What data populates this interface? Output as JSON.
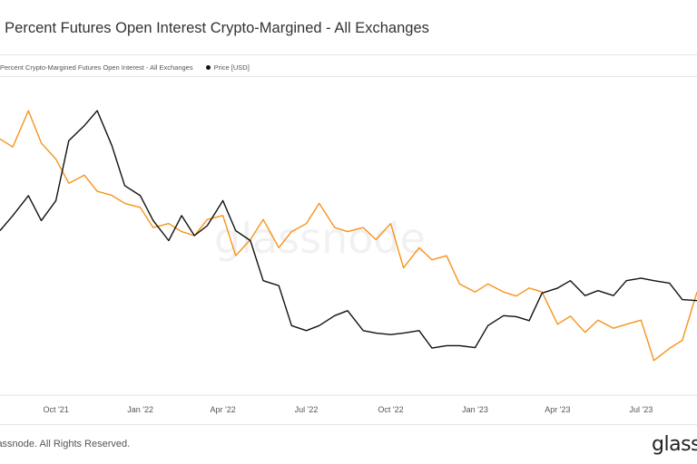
{
  "title": ": Percent Futures Open Interest Crypto-Margined - All Exchanges",
  "legend": [
    {
      "label": "Percent Crypto-Margined Futures Open Interest - All Exchanges",
      "color": "#f7931a"
    },
    {
      "label": "Price [USD]",
      "color": "#111111"
    }
  ],
  "watermark": "glassnode",
  "footer": {
    "copyright": "lassnode. All Rights Reserved.",
    "logo": "glass"
  },
  "colors": {
    "series1": "#f7931a",
    "series2": "#111111"
  },
  "chart_data": {
    "type": "line",
    "x_range": [
      "2021-08-01",
      "2023-08-31"
    ],
    "x_ticks": [
      "Oct '21",
      "Jan '22",
      "Apr '22",
      "Jul '22",
      "Oct '22",
      "Jan '23",
      "Apr '23",
      "Jul '23"
    ],
    "grid": false,
    "legend_position": "top-left",
    "series": [
      {
        "name": "Percent Crypto-Margined Futures Open Interest - All Exchanges",
        "color": "#f7931a",
        "x": [
          "2021-08-01",
          "2021-08-15",
          "2021-09-01",
          "2021-09-15",
          "2021-10-01",
          "2021-10-15",
          "2021-11-01",
          "2021-11-15",
          "2021-12-01",
          "2021-12-15",
          "2022-01-01",
          "2022-01-15",
          "2022-02-01",
          "2022-02-15",
          "2022-03-01",
          "2022-03-15",
          "2022-04-01",
          "2022-04-15",
          "2022-05-01",
          "2022-05-15",
          "2022-06-01",
          "2022-06-15",
          "2022-07-01",
          "2022-07-15",
          "2022-08-01",
          "2022-08-15",
          "2022-09-01",
          "2022-09-15",
          "2022-10-01",
          "2022-10-15",
          "2022-11-01",
          "2022-11-15",
          "2022-12-01",
          "2022-12-15",
          "2023-01-01",
          "2023-01-15",
          "2023-02-01",
          "2023-02-15",
          "2023-03-01",
          "2023-03-15",
          "2023-04-01",
          "2023-04-15",
          "2023-05-01",
          "2023-05-15",
          "2023-06-01",
          "2023-06-15",
          "2023-07-01",
          "2023-07-15",
          "2023-08-01",
          "2023-08-15",
          "2023-08-31"
        ],
        "y": [
          0.8,
          0.78,
          0.87,
          0.79,
          0.75,
          0.69,
          0.71,
          0.67,
          0.66,
          0.64,
          0.63,
          0.58,
          0.59,
          0.57,
          0.56,
          0.6,
          0.61,
          0.51,
          0.55,
          0.6,
          0.53,
          0.57,
          0.59,
          0.64,
          0.58,
          0.57,
          0.58,
          0.55,
          0.59,
          0.48,
          0.53,
          0.5,
          0.51,
          0.44,
          0.42,
          0.44,
          0.42,
          0.41,
          0.43,
          0.42,
          0.34,
          0.36,
          0.32,
          0.35,
          0.33,
          0.34,
          0.35,
          0.25,
          0.28,
          0.3,
          0.42
        ]
      },
      {
        "name": "Price [USD]",
        "color": "#111111",
        "x": [
          "2021-08-01",
          "2021-08-15",
          "2021-09-01",
          "2021-09-15",
          "2021-10-01",
          "2021-10-15",
          "2021-11-01",
          "2021-11-15",
          "2021-12-01",
          "2021-12-15",
          "2022-01-01",
          "2022-01-15",
          "2022-02-01",
          "2022-02-15",
          "2022-03-01",
          "2022-03-15",
          "2022-04-01",
          "2022-04-15",
          "2022-05-01",
          "2022-05-15",
          "2022-06-01",
          "2022-06-15",
          "2022-07-01",
          "2022-07-15",
          "2022-08-01",
          "2022-08-15",
          "2022-09-01",
          "2022-09-15",
          "2022-10-01",
          "2022-10-15",
          "2022-11-01",
          "2022-11-15",
          "2022-12-01",
          "2022-12-15",
          "2023-01-01",
          "2023-01-15",
          "2023-02-01",
          "2023-02-15",
          "2023-03-01",
          "2023-03-15",
          "2023-04-01",
          "2023-04-15",
          "2023-05-01",
          "2023-05-15",
          "2023-06-01",
          "2023-06-15",
          "2023-07-01",
          "2023-07-15",
          "2023-08-01",
          "2023-08-15",
          "2023-08-31"
        ],
        "y": [
          40000,
          43000,
          47000,
          42000,
          46000,
          58000,
          61000,
          64000,
          57000,
          49000,
          47000,
          42000,
          38000,
          43000,
          39000,
          41000,
          46000,
          40000,
          38000,
          30000,
          29000,
          21000,
          20000,
          21000,
          23000,
          24000,
          20000,
          19500,
          19200,
          19500,
          20000,
          16500,
          17000,
          17000,
          16600,
          21000,
          23000,
          22800,
          22000,
          27500,
          28500,
          30000,
          27000,
          28000,
          27000,
          30000,
          30500,
          30000,
          29500,
          26200,
          26000
        ]
      }
    ]
  }
}
